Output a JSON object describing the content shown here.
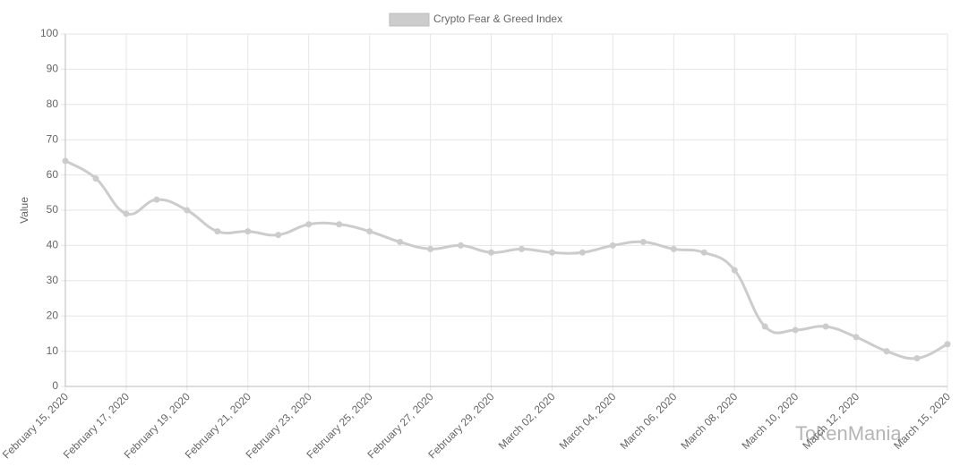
{
  "chart_data": {
    "type": "line",
    "categories": [
      "February 15, 2020",
      null,
      "February 17, 2020",
      null,
      "February 19, 2020",
      null,
      "February 21, 2020",
      null,
      "February 23, 2020",
      null,
      "February 25, 2020",
      null,
      "February 27, 2020",
      null,
      "February 29, 2020",
      null,
      "March 02, 2020",
      null,
      "March 04, 2020",
      null,
      "March 06, 2020",
      null,
      "March 08, 2020",
      null,
      "March 10, 2020",
      null,
      "March 12, 2020",
      null,
      null,
      "March 15, 2020"
    ],
    "series": [
      {
        "name": "Crypto Fear & Greed Index",
        "color": "#cccccc",
        "values": [
          64,
          59,
          49,
          53,
          50,
          44,
          44,
          43,
          46,
          46,
          44,
          41,
          39,
          40,
          38,
          39,
          38,
          38,
          40,
          41,
          39,
          38,
          33,
          17,
          16,
          17,
          14,
          10,
          8,
          12
        ]
      }
    ],
    "y_label": "Value",
    "ylim": [
      0,
      100
    ],
    "yticks": [
      0,
      10,
      20,
      30,
      40,
      50,
      60,
      70,
      80,
      90,
      100
    ],
    "grid": true,
    "legend": "top",
    "watermark": "TokenMania"
  }
}
